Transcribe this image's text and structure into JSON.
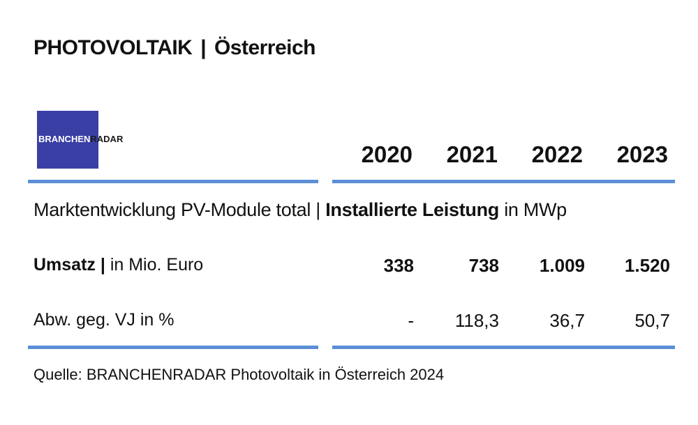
{
  "header": {
    "title_main": "PHOTOVOLTAIK",
    "title_sep": "|",
    "title_country": "Österreich"
  },
  "logo": {
    "part_a": "BRANCHEN",
    "part_b": "RADAR",
    "brand_color": "#3a3fa6"
  },
  "table": {
    "years": [
      "2020",
      "2021",
      "2022",
      "2023"
    ],
    "subtitle": {
      "prefix": "Marktentwicklung PV-Module total |",
      "bold": "Installierte Leistung",
      "suffix": "in MWp"
    },
    "rows": [
      {
        "label_bold": "Umsatz |",
        "label_rest": "in Mio. Euro",
        "values": [
          "338",
          "738",
          "1.009",
          "1.520"
        ]
      },
      {
        "label_bold": "",
        "label_rest": "Abw. geg. VJ in %",
        "values": [
          "-",
          "118,3",
          "36,7",
          "50,7"
        ]
      }
    ],
    "rule_color": "#5b8ed6"
  },
  "source": "Quelle: BRANCHENRADAR Photovoltaik in Österreich 2024"
}
